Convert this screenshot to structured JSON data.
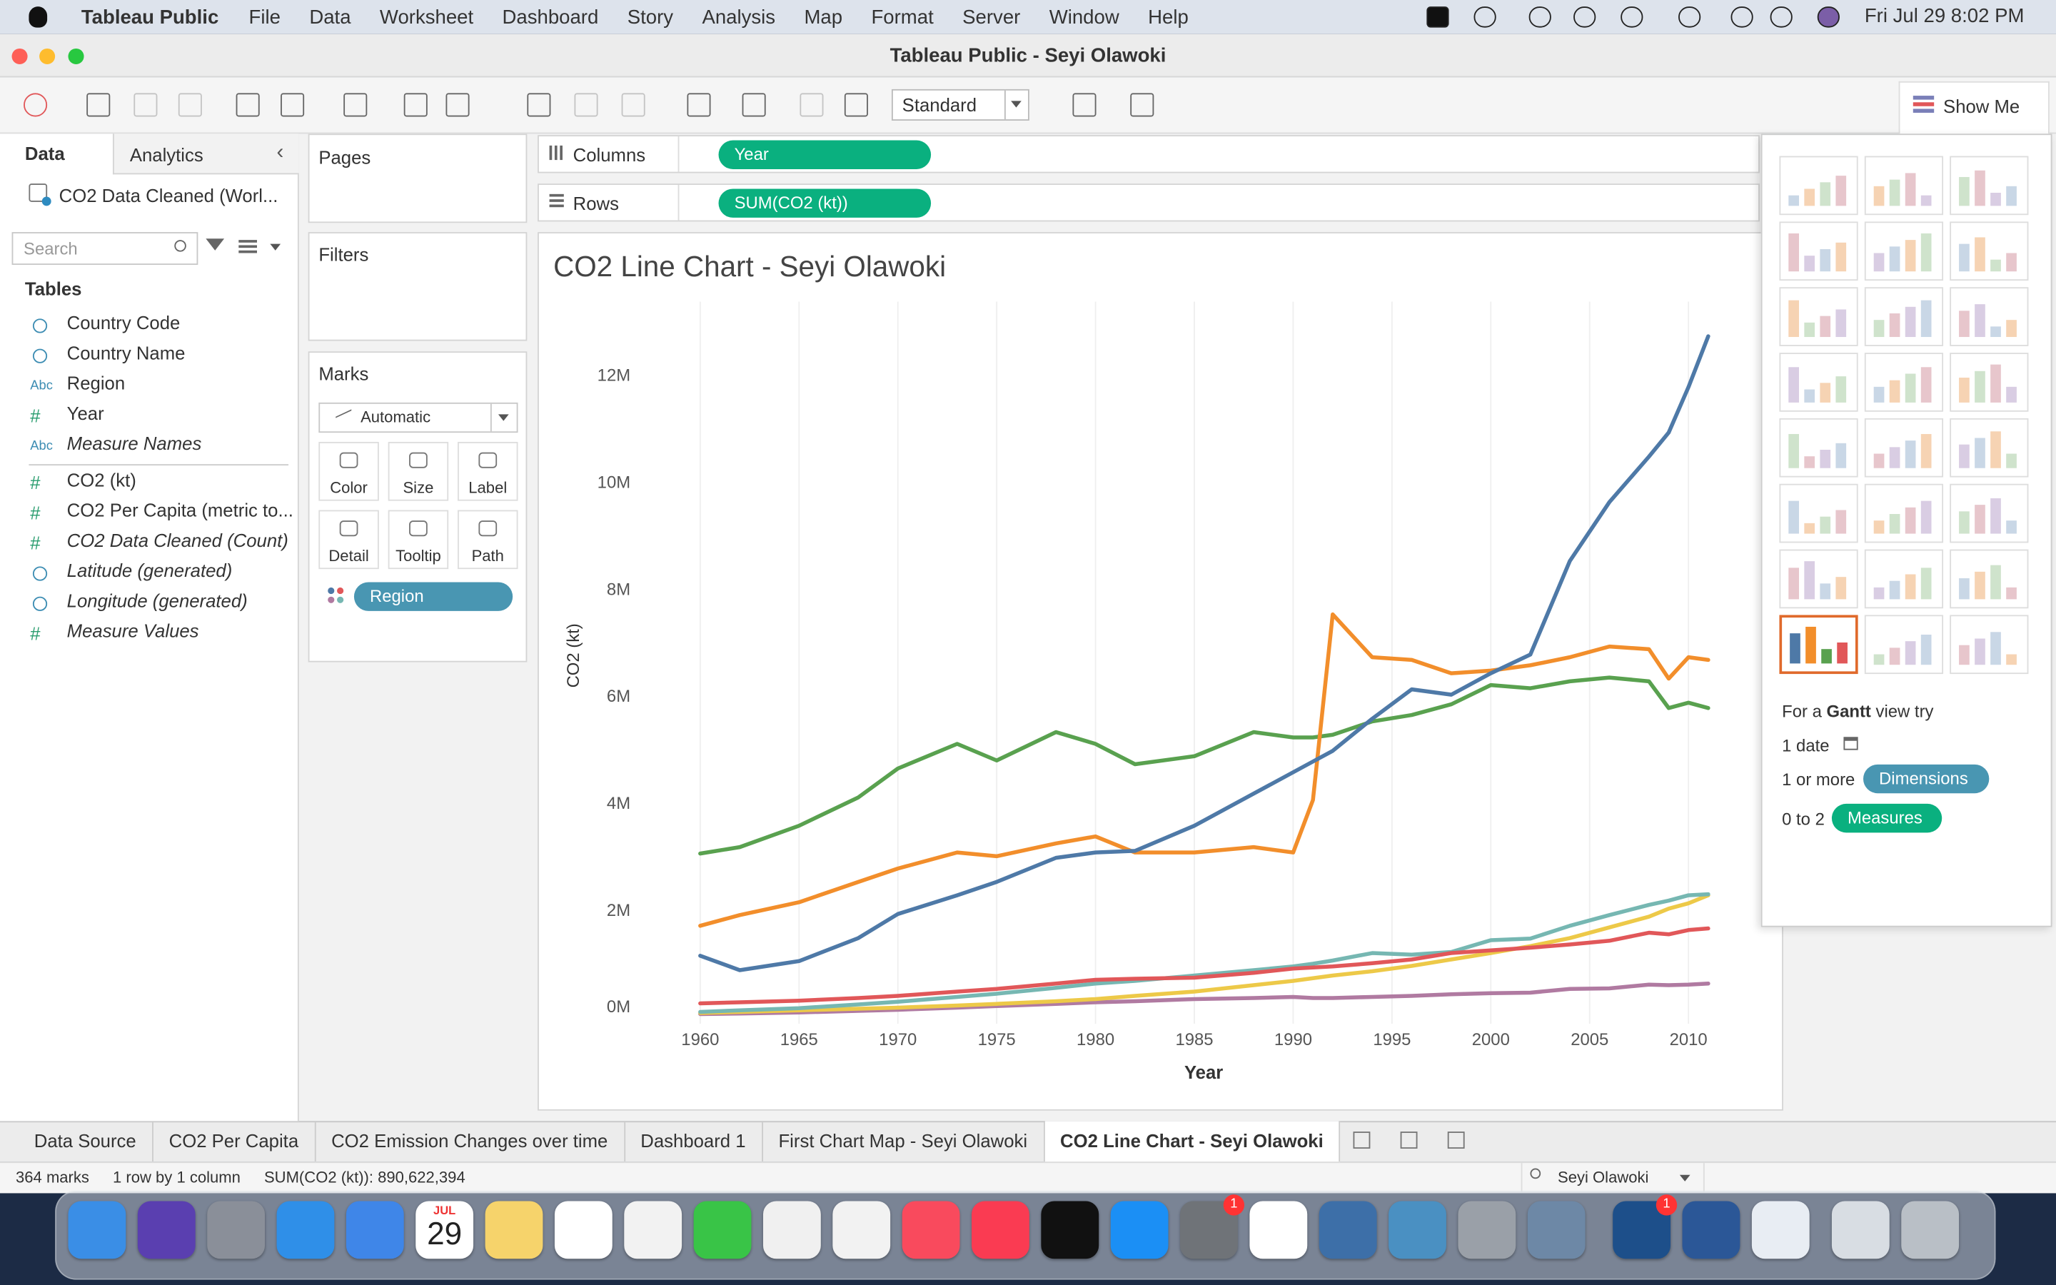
{
  "menu_bar": {
    "app": "Tableau Public",
    "items": [
      "File",
      "Data",
      "Worksheet",
      "Dashboard",
      "Story",
      "Analysis",
      "Map",
      "Format",
      "Server",
      "Window",
      "Help"
    ],
    "clock": "Fri Jul 29  8:02 PM"
  },
  "window_title": "Tableau Public - Seyi Olawoki",
  "toolbar": {
    "fit": "Standard",
    "show_me": "Show Me"
  },
  "data_pane": {
    "tabs": [
      "Data",
      "Analytics"
    ],
    "source": "CO2 Data Cleaned (Worl...",
    "search": "Search",
    "tables_heading": "Tables",
    "fields": [
      {
        "icon": "globe",
        "name": "Country Code"
      },
      {
        "icon": "globe",
        "name": "Country Name"
      },
      {
        "icon": "Abc",
        "name": "Region"
      },
      {
        "icon": "#",
        "name": "Year"
      },
      {
        "icon": "Abc",
        "name": "Measure Names",
        "italic": true
      },
      {
        "icon": "#",
        "name": "CO2 (kt)"
      },
      {
        "icon": "#",
        "name": "CO2 Per Capita (metric to..."
      },
      {
        "icon": "#",
        "name": "CO2 Data Cleaned (Count)",
        "italic": true
      },
      {
        "icon": "globe",
        "name": "Latitude (generated)",
        "italic": true
      },
      {
        "icon": "globe",
        "name": "Longitude (generated)",
        "italic": true
      },
      {
        "icon": "#",
        "name": "Measure Values",
        "italic": true
      }
    ]
  },
  "shelves": {
    "pages": "Pages",
    "filters": "Filters",
    "marks": "Marks",
    "mark_type": "Automatic",
    "mark_buttons": [
      "Color",
      "Size",
      "Label",
      "Detail",
      "Tooltip",
      "Path"
    ],
    "color_pill": "Region",
    "columns": "Columns",
    "columns_pill": "Year",
    "rows": "Rows",
    "rows_pill": "SUM(CO2 (kt))"
  },
  "show_me": {
    "prefix": "For a",
    "chart": "Gantt",
    "suffix": "view try",
    "date": "1 date",
    "dims_prefix": "1 or more",
    "dims": "Dimensions",
    "measures_prefix": "0 to 2",
    "measures": "Measures"
  },
  "sheet_tabs": {
    "tabs": [
      "Data Source",
      "CO2 Per Capita",
      "CO2 Emission Changes over time",
      "Dashboard 1",
      "First Chart Map - Seyi Olawoki",
      "CO2 Line Chart - Seyi Olawoki"
    ],
    "active": 5
  },
  "status_bar": {
    "items": [
      "364 marks",
      "1 row by 1 column",
      "SUM(CO2 (kt)): 890,622,394"
    ],
    "user": "Seyi Olawoki"
  },
  "dock": {
    "calendar_month": "JUL",
    "calendar_day": "29",
    "badges": [
      "1",
      "1"
    ]
  },
  "chart_data": {
    "type": "line",
    "title": "CO2 Line Chart - Seyi Olawoki",
    "x_label": "Year",
    "y_label": "CO2 (kt)",
    "x": [
      1960,
      1962,
      1965,
      1968,
      1970,
      1973,
      1975,
      1978,
      1980,
      1982,
      1985,
      1988,
      1990,
      1991,
      1992,
      1994,
      1996,
      1998,
      2000,
      2002,
      2004,
      2006,
      2008,
      2009,
      2010,
      2011
    ],
    "series": [
      {
        "color": "#b07aa1",
        "values": [
          80000,
          90000,
          110000,
          140000,
          160000,
          200000,
          230000,
          270000,
          300000,
          320000,
          360000,
          380000,
          400000,
          380000,
          380000,
          400000,
          420000,
          450000,
          470000,
          480000,
          550000,
          560000,
          630000,
          620000,
          630000,
          650000
        ]
      },
      {
        "color": "#edc948",
        "values": [
          100000,
          120000,
          150000,
          180000,
          200000,
          240000,
          270000,
          320000,
          360000,
          420000,
          500000,
          620000,
          700000,
          750000,
          800000,
          880000,
          980000,
          1100000,
          1220000,
          1350000,
          1500000,
          1700000,
          1900000,
          2050000,
          2150000,
          2300000
        ]
      },
      {
        "color": "#76b7b2",
        "values": [
          120000,
          150000,
          190000,
          260000,
          310000,
          400000,
          460000,
          570000,
          650000,
          700000,
          800000,
          900000,
          970000,
          1020000,
          1080000,
          1220000,
          1190000,
          1240000,
          1460000,
          1490000,
          1730000,
          1930000,
          2120000,
          2200000,
          2300000,
          2320000
        ]
      },
      {
        "color": "#e15759",
        "values": [
          280000,
          300000,
          330000,
          380000,
          420000,
          500000,
          550000,
          650000,
          720000,
          740000,
          760000,
          850000,
          930000,
          950000,
          970000,
          1030000,
          1100000,
          1220000,
          1270000,
          1320000,
          1380000,
          1450000,
          1600000,
          1570000,
          1650000,
          1680000
        ]
      },
      {
        "color": "#59a14f",
        "values": [
          3080000,
          3200000,
          3600000,
          4130000,
          4670000,
          5130000,
          4820000,
          5350000,
          5130000,
          4750000,
          4900000,
          5350000,
          5250000,
          5250000,
          5300000,
          5550000,
          5670000,
          5870000,
          6230000,
          6170000,
          6300000,
          6370000,
          6300000,
          5800000,
          5900000,
          5800000
        ]
      },
      {
        "color": "#f28e2b",
        "values": [
          1730000,
          1930000,
          2170000,
          2550000,
          2800000,
          3100000,
          3030000,
          3270000,
          3400000,
          3100000,
          3100000,
          3200000,
          3100000,
          4080000,
          7550000,
          6750000,
          6700000,
          6450000,
          6500000,
          6600000,
          6750000,
          6950000,
          6900000,
          6350000,
          6750000,
          6700000
        ]
      },
      {
        "color": "#4e79a7",
        "values": [
          1170000,
          900000,
          1070000,
          1500000,
          1950000,
          2300000,
          2550000,
          3000000,
          3100000,
          3130000,
          3600000,
          4200000,
          4600000,
          4800000,
          5000000,
          5600000,
          6150000,
          6050000,
          6450000,
          6800000,
          8550000,
          9650000,
          10500000,
          10950000,
          11800000,
          12750000
        ]
      }
    ],
    "xlim": [
      1957,
      2014
    ],
    "xticks": [
      1960,
      1965,
      1970,
      1975,
      1980,
      1985,
      1990,
      1995,
      2000,
      2005,
      2010
    ],
    "ylim": [
      -100000,
      13300000
    ],
    "yticks": [
      {
        "value": 0,
        "label": "0M"
      },
      {
        "value": 2000000,
        "label": "2M"
      },
      {
        "value": 4000000,
        "label": "4M"
      },
      {
        "value": 6000000,
        "label": "6M"
      },
      {
        "value": 8000000,
        "label": "8M"
      },
      {
        "value": 10000000,
        "label": "10M"
      },
      {
        "value": 12000000,
        "label": "12M"
      }
    ],
    "grid": "x"
  }
}
